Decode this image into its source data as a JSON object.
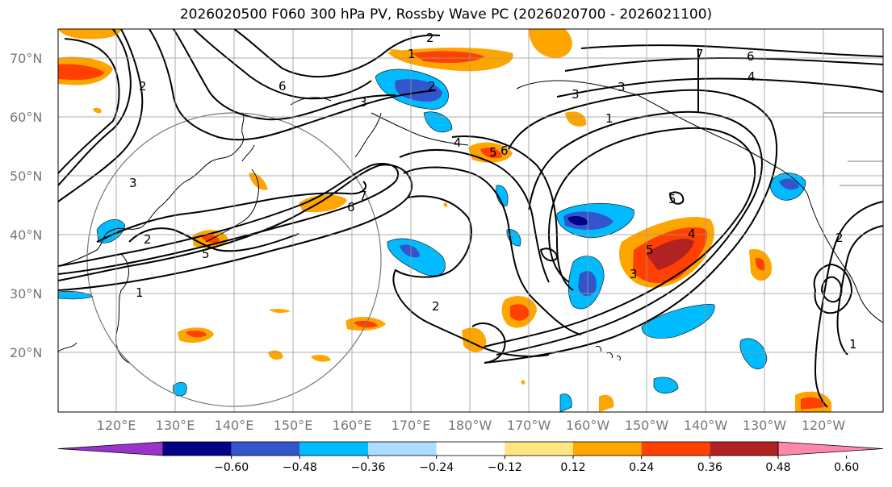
{
  "title": "2026020500 F060 300 hPa PV, Rossby Wave PC (2026020700 - 2026021100)",
  "lat_labels": [
    "70°N",
    "60°N",
    "50°N",
    "40°N",
    "30°N",
    "20°N"
  ],
  "lon_labels": [
    "120°E",
    "130°E",
    "140°E",
    "150°E",
    "160°E",
    "170°E",
    "180°W",
    "170°W",
    "160°W",
    "150°W",
    "140°W",
    "130°W",
    "120°W"
  ],
  "colorbar": {
    "ticks": [
      "−0.60",
      "−0.48",
      "−0.36",
      "−0.24",
      "−0.12",
      "0.12",
      "0.24",
      "0.36",
      "0.48",
      "0.60"
    ],
    "colors": [
      "#9933cc",
      "#000088",
      "#3355cc",
      "#00bbff",
      "#aaddff",
      "#ffffff",
      "#ffe680",
      "#ffa500",
      "#ff4000",
      "#b22222",
      "#ff88aa"
    ]
  },
  "contour_labels": [
    "1",
    "2",
    "2",
    "3",
    "3",
    "4",
    "5",
    "6",
    "6",
    "7",
    "7",
    "6",
    "4",
    "3",
    "1",
    "2",
    "5",
    "5",
    "4",
    "3",
    "2",
    "1",
    "2",
    "3",
    "5",
    "1",
    "2",
    "6"
  ]
}
